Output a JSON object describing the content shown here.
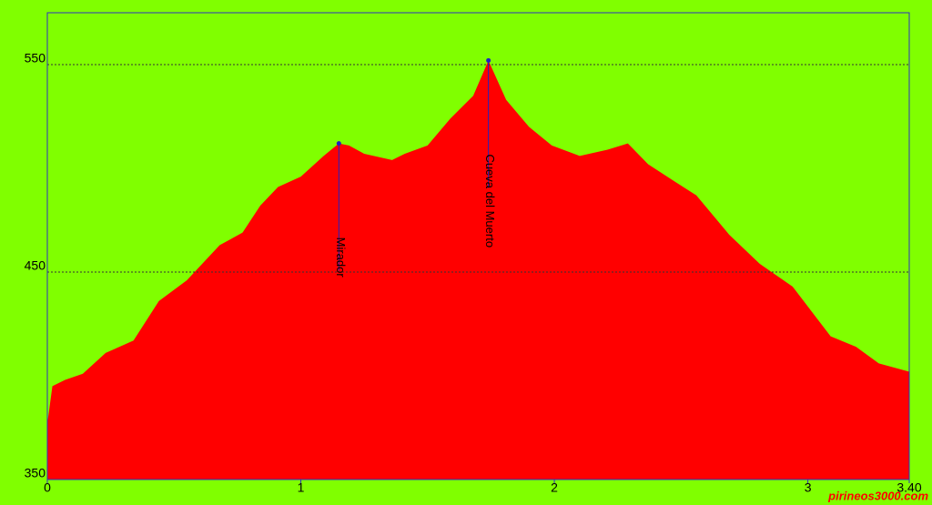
{
  "chart_data": {
    "type": "area",
    "x": [
      0,
      0.02,
      0.07,
      0.14,
      0.23,
      0.34,
      0.44,
      0.55,
      0.68,
      0.77,
      0.84,
      0.91,
      1.0,
      1.09,
      1.15,
      1.19,
      1.25,
      1.36,
      1.41,
      1.5,
      1.59,
      1.68,
      1.74,
      1.81,
      1.9,
      1.99,
      2.1,
      2.21,
      2.29,
      2.37,
      2.47,
      2.56,
      2.69,
      2.81,
      2.94,
      3.09,
      3.19,
      3.28,
      3.4
    ],
    "values": [
      377,
      395,
      398,
      401,
      411,
      417,
      436,
      446,
      463,
      469,
      482,
      491,
      496,
      506,
      512,
      511,
      507,
      504,
      507,
      511,
      524,
      535,
      552,
      533,
      520,
      511,
      506,
      509,
      512,
      502,
      494,
      487,
      468,
      454,
      443,
      419,
      414,
      406,
      402
    ],
    "color": "#ff0000",
    "xlim": [
      0,
      3.4
    ],
    "xticks": [
      0,
      1,
      2,
      3,
      {
        "value": 3.4,
        "label": "3.40"
      }
    ],
    "ylim": [
      350,
      575
    ],
    "yticks": [
      350,
      450,
      550
    ],
    "grid": true,
    "annotations": [
      {
        "label": "Mirador",
        "x": 1.15,
        "y": 512
      },
      {
        "label": "Cueva del Muerto",
        "x": 1.74,
        "y": 552
      }
    ],
    "watermark": "pirineos3000.com"
  }
}
